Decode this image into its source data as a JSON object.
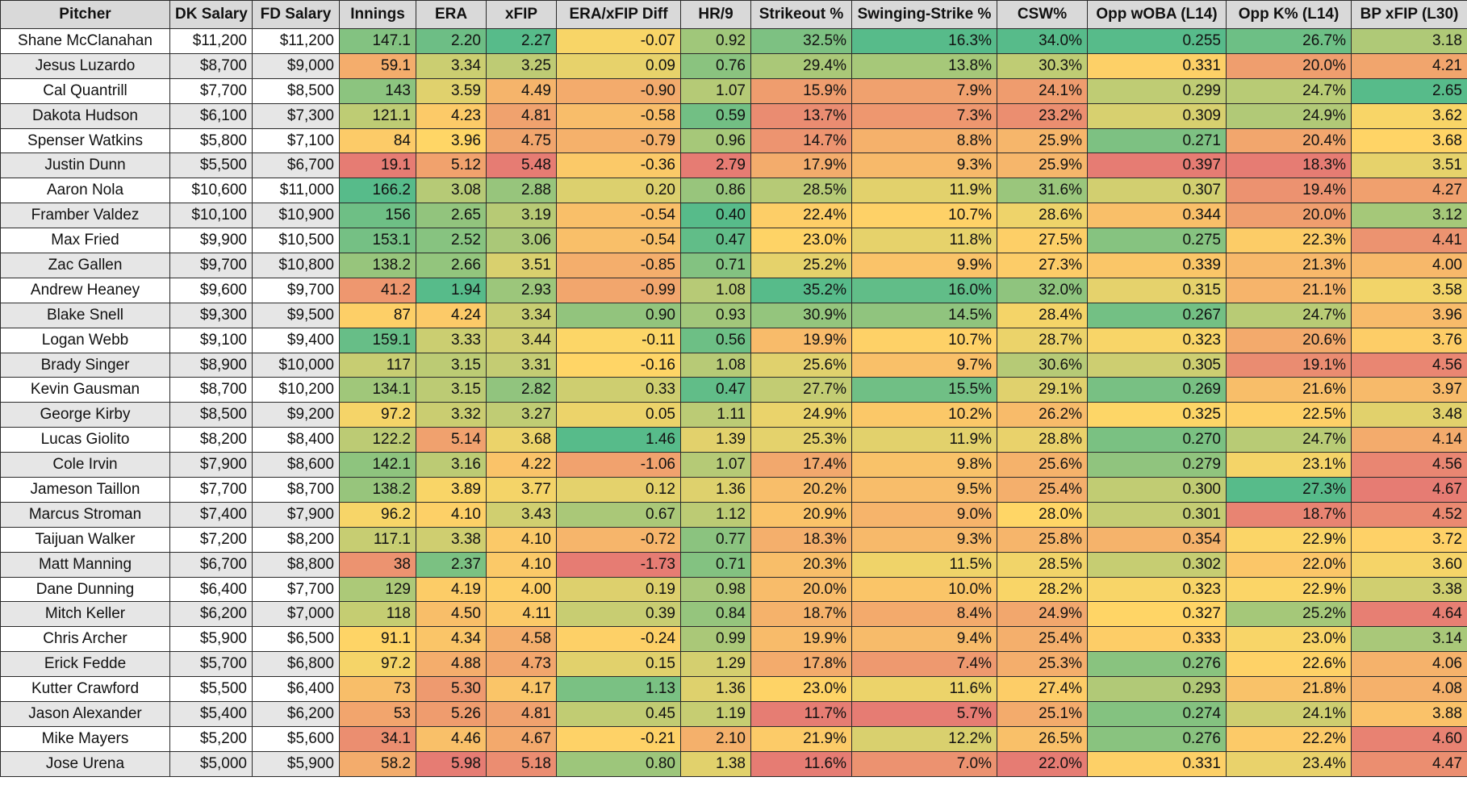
{
  "headers": [
    "Pitcher",
    "DK Salary",
    "FD Salary",
    "Innings",
    "ERA",
    "xFIP",
    "ERA/xFIP Diff",
    "HR/9",
    "Strikeout %",
    "Swinging-Strike %",
    "CSW%",
    "Opp wOBA (L14)",
    "Opp K% (L14)",
    "BP xFIP (L30)"
  ],
  "rows": [
    [
      "Shane McClanahan",
      "$11,200",
      "$11,200",
      "147.1",
      "2.20",
      "2.27",
      "-0.07",
      "0.92",
      "32.5%",
      "16.3%",
      "34.0%",
      "0.255",
      "26.7%",
      "3.18"
    ],
    [
      "Jesus Luzardo",
      "$8,700",
      "$9,000",
      "59.1",
      "3.34",
      "3.25",
      "0.09",
      "0.76",
      "29.4%",
      "13.8%",
      "30.3%",
      "0.331",
      "20.0%",
      "4.21"
    ],
    [
      "Cal Quantrill",
      "$7,700",
      "$8,500",
      "143",
      "3.59",
      "4.49",
      "-0.90",
      "1.07",
      "15.9%",
      "7.9%",
      "24.1%",
      "0.299",
      "24.7%",
      "2.65"
    ],
    [
      "Dakota Hudson",
      "$6,100",
      "$7,300",
      "121.1",
      "4.23",
      "4.81",
      "-0.58",
      "0.59",
      "13.7%",
      "7.3%",
      "23.2%",
      "0.309",
      "24.9%",
      "3.62"
    ],
    [
      "Spenser Watkins",
      "$5,800",
      "$7,100",
      "84",
      "3.96",
      "4.75",
      "-0.79",
      "0.96",
      "14.7%",
      "8.8%",
      "25.9%",
      "0.271",
      "20.4%",
      "3.68"
    ],
    [
      "Justin Dunn",
      "$5,500",
      "$6,700",
      "19.1",
      "5.12",
      "5.48",
      "-0.36",
      "2.79",
      "17.9%",
      "9.3%",
      "25.9%",
      "0.397",
      "18.3%",
      "3.51"
    ],
    [
      "Aaron Nola",
      "$10,600",
      "$11,000",
      "166.2",
      "3.08",
      "2.88",
      "0.20",
      "0.86",
      "28.5%",
      "11.9%",
      "31.6%",
      "0.307",
      "19.4%",
      "4.27"
    ],
    [
      "Framber Valdez",
      "$10,100",
      "$10,900",
      "156",
      "2.65",
      "3.19",
      "-0.54",
      "0.40",
      "22.4%",
      "10.7%",
      "28.6%",
      "0.344",
      "20.0%",
      "3.12"
    ],
    [
      "Max Fried",
      "$9,900",
      "$10,500",
      "153.1",
      "2.52",
      "3.06",
      "-0.54",
      "0.47",
      "23.0%",
      "11.8%",
      "27.5%",
      "0.275",
      "22.3%",
      "4.41"
    ],
    [
      "Zac Gallen",
      "$9,700",
      "$10,800",
      "138.2",
      "2.66",
      "3.51",
      "-0.85",
      "0.71",
      "25.2%",
      "9.9%",
      "27.3%",
      "0.339",
      "21.3%",
      "4.00"
    ],
    [
      "Andrew Heaney",
      "$9,600",
      "$9,700",
      "41.2",
      "1.94",
      "2.93",
      "-0.99",
      "1.08",
      "35.2%",
      "16.0%",
      "32.0%",
      "0.315",
      "21.1%",
      "3.58"
    ],
    [
      "Blake Snell",
      "$9,300",
      "$9,500",
      "87",
      "4.24",
      "3.34",
      "0.90",
      "0.93",
      "30.9%",
      "14.5%",
      "28.4%",
      "0.267",
      "24.7%",
      "3.96"
    ],
    [
      "Logan Webb",
      "$9,100",
      "$9,400",
      "159.1",
      "3.33",
      "3.44",
      "-0.11",
      "0.56",
      "19.9%",
      "10.7%",
      "28.7%",
      "0.323",
      "20.6%",
      "3.76"
    ],
    [
      "Brady Singer",
      "$8,900",
      "$10,000",
      "117",
      "3.15",
      "3.31",
      "-0.16",
      "1.08",
      "25.6%",
      "9.7%",
      "30.6%",
      "0.305",
      "19.1%",
      "4.56"
    ],
    [
      "Kevin Gausman",
      "$8,700",
      "$10,200",
      "134.1",
      "3.15",
      "2.82",
      "0.33",
      "0.47",
      "27.7%",
      "15.5%",
      "29.1%",
      "0.269",
      "21.6%",
      "3.97"
    ],
    [
      "George Kirby",
      "$8,500",
      "$9,200",
      "97.2",
      "3.32",
      "3.27",
      "0.05",
      "1.11",
      "24.9%",
      "10.2%",
      "26.2%",
      "0.325",
      "22.5%",
      "3.48"
    ],
    [
      "Lucas Giolito",
      "$8,200",
      "$8,400",
      "122.2",
      "5.14",
      "3.68",
      "1.46",
      "1.39",
      "25.3%",
      "11.9%",
      "28.8%",
      "0.270",
      "24.7%",
      "4.14"
    ],
    [
      "Cole Irvin",
      "$7,900",
      "$8,600",
      "142.1",
      "3.16",
      "4.22",
      "-1.06",
      "1.07",
      "17.4%",
      "9.8%",
      "25.6%",
      "0.279",
      "23.1%",
      "4.56"
    ],
    [
      "Jameson Taillon",
      "$7,700",
      "$8,700",
      "138.2",
      "3.89",
      "3.77",
      "0.12",
      "1.36",
      "20.2%",
      "9.5%",
      "25.4%",
      "0.300",
      "27.3%",
      "4.67"
    ],
    [
      "Marcus Stroman",
      "$7,400",
      "$7,900",
      "96.2",
      "4.10",
      "3.43",
      "0.67",
      "1.12",
      "20.9%",
      "9.0%",
      "28.0%",
      "0.301",
      "18.7%",
      "4.52"
    ],
    [
      "Taijuan Walker",
      "$7,200",
      "$8,200",
      "117.1",
      "3.38",
      "4.10",
      "-0.72",
      "0.77",
      "18.3%",
      "9.3%",
      "25.8%",
      "0.354",
      "22.9%",
      "3.72"
    ],
    [
      "Matt Manning",
      "$6,700",
      "$8,800",
      "38",
      "2.37",
      "4.10",
      "-1.73",
      "0.71",
      "20.3%",
      "11.5%",
      "28.5%",
      "0.302",
      "22.0%",
      "3.60"
    ],
    [
      "Dane Dunning",
      "$6,400",
      "$7,700",
      "129",
      "4.19",
      "4.00",
      "0.19",
      "0.98",
      "20.0%",
      "10.0%",
      "28.2%",
      "0.323",
      "22.9%",
      "3.38"
    ],
    [
      "Mitch Keller",
      "$6,200",
      "$7,000",
      "118",
      "4.50",
      "4.11",
      "0.39",
      "0.84",
      "18.7%",
      "8.4%",
      "24.9%",
      "0.327",
      "25.2%",
      "4.64"
    ],
    [
      "Chris Archer",
      "$5,900",
      "$6,500",
      "91.1",
      "4.34",
      "4.58",
      "-0.24",
      "0.99",
      "19.9%",
      "9.4%",
      "25.4%",
      "0.333",
      "23.0%",
      "3.14"
    ],
    [
      "Erick Fedde",
      "$5,700",
      "$6,800",
      "97.2",
      "4.88",
      "4.73",
      "0.15",
      "1.29",
      "17.8%",
      "7.4%",
      "25.3%",
      "0.276",
      "22.6%",
      "4.06"
    ],
    [
      "Kutter Crawford",
      "$5,500",
      "$6,400",
      "73",
      "5.30",
      "4.17",
      "1.13",
      "1.36",
      "23.0%",
      "11.6%",
      "27.4%",
      "0.293",
      "21.8%",
      "4.08"
    ],
    [
      "Jason Alexander",
      "$5,400",
      "$6,200",
      "53",
      "5.26",
      "4.81",
      "0.45",
      "1.19",
      "11.7%",
      "5.7%",
      "25.1%",
      "0.274",
      "24.1%",
      "3.88"
    ],
    [
      "Mike Mayers",
      "$5,200",
      "$5,600",
      "34.1",
      "4.46",
      "4.67",
      "-0.21",
      "2.10",
      "21.9%",
      "12.2%",
      "26.5%",
      "0.276",
      "22.2%",
      "4.60"
    ],
    [
      "Jose Urena",
      "$5,000",
      "$5,900",
      "58.2",
      "5.98",
      "5.18",
      "0.80",
      "1.38",
      "11.6%",
      "7.0%",
      "22.0%",
      "0.331",
      "23.4%",
      "4.47"
    ]
  ],
  "colors": {
    "green": "#57bb8a",
    "yellow": "#ffd666",
    "red": "#e67c73"
  }
}
